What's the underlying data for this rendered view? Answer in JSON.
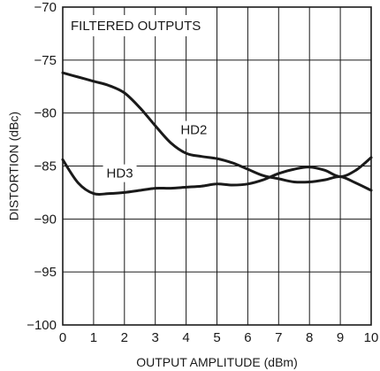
{
  "chart_data": {
    "type": "line",
    "title": "",
    "xlabel": "OUTPUT AMPLITUDE (dBm)",
    "ylabel": "DISTORTION (dBc)",
    "xlim": [
      0,
      10
    ],
    "ylim": [
      -100,
      -70
    ],
    "x_ticks": [
      "0",
      "1",
      "2",
      "3",
      "4",
      "5",
      "6",
      "7",
      "8",
      "9",
      "10"
    ],
    "y_ticks": [
      "−70",
      "−75",
      "−80",
      "−85",
      "−90",
      "−95",
      "−100"
    ],
    "grid": true,
    "annotations": [
      "FILTERED OUTPUTS"
    ],
    "series": [
      {
        "name": "HD2",
        "x": [
          0,
          0.5,
          1,
          1.5,
          2,
          2.5,
          3,
          3.5,
          4,
          4.5,
          5,
          5.5,
          6,
          6.5,
          7,
          7.5,
          8,
          8.5,
          9,
          9.5,
          10
        ],
        "y": [
          -76.2,
          -76.6,
          -77.0,
          -77.4,
          -78.1,
          -79.5,
          -81.2,
          -82.8,
          -83.8,
          -84.1,
          -84.3,
          -84.7,
          -85.3,
          -85.9,
          -86.2,
          -86.5,
          -86.5,
          -86.3,
          -86.0,
          -86.6,
          -87.3
        ]
      },
      {
        "name": "HD3",
        "x": [
          0,
          0.5,
          1,
          1.5,
          2,
          2.5,
          3,
          3.5,
          4,
          4.5,
          5,
          5.5,
          6,
          6.5,
          7,
          7.5,
          8,
          8.5,
          9,
          9.5,
          10
        ],
        "y": [
          -84.4,
          -86.6,
          -87.6,
          -87.6,
          -87.5,
          -87.3,
          -87.1,
          -87.1,
          -87.0,
          -86.9,
          -86.7,
          -86.8,
          -86.7,
          -86.3,
          -85.7,
          -85.3,
          -85.1,
          -85.4,
          -86.0,
          -85.4,
          -84.2
        ]
      }
    ]
  }
}
